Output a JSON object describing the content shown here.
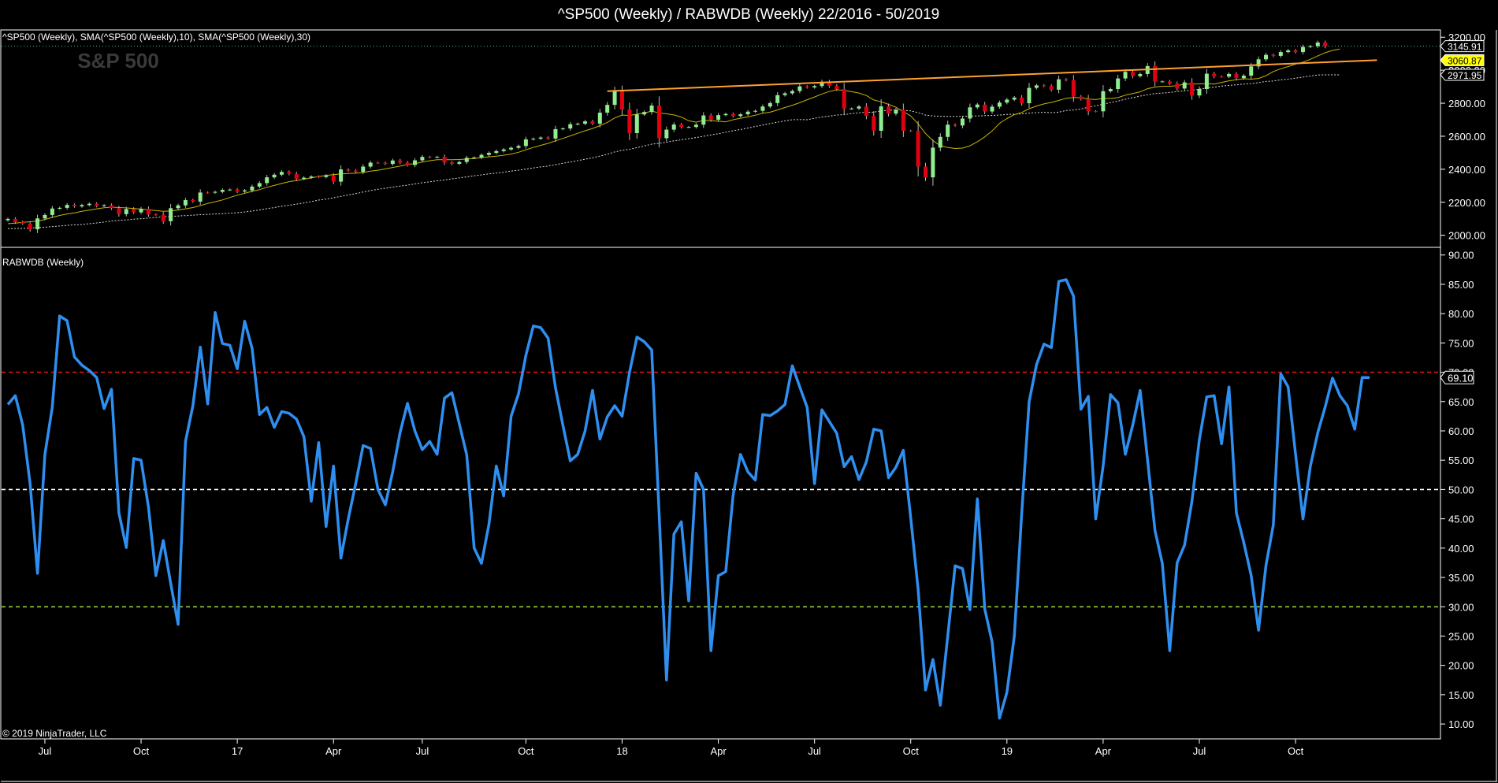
{
  "title": "^SP500 (Weekly) / RABWDB (Weekly)  22/2016 - 50/2019",
  "copyright": "© 2019 NinjaTrader, LLC",
  "colors": {
    "background": "#000000",
    "candle_up": "#90ee90",
    "candle_down": "#e0000f",
    "sma10": "#c8b400",
    "sma30": "#d8d8d8",
    "trendline": "#ffa030",
    "rabwdb_line": "#2f8ff0",
    "level_70": "#e01010",
    "level_50": "#ffffff",
    "level_30": "#9acd32",
    "grid": "#ffffff"
  },
  "chart_data": [
    {
      "id": "price_panel",
      "type": "candlestick",
      "panel_label": "^SP500 (Weekly),  SMA(^SP500 (Weekly),10),  SMA(^SP500 (Weekly),30)",
      "watermark": "S&P 500",
      "y_ticks": [
        "2000.00",
        "2200.00",
        "2400.00",
        "2600.00",
        "2800.00",
        "3000.00",
        "3200.00"
      ],
      "y_tick_values": [
        2000,
        2200,
        2400,
        2600,
        2800,
        3000,
        3200
      ],
      "ylim": [
        1965,
        3225
      ],
      "last_values": [
        {
          "label": "3145.91",
          "value": 3145.91,
          "style": "white"
        },
        {
          "label": "3060.87",
          "value": 3060.87,
          "style": "yellow"
        },
        {
          "label": "2971.95",
          "value": 2971.95,
          "style": "white"
        }
      ],
      "closes": [
        2099,
        2080,
        2071,
        2036,
        2102,
        2123,
        2162,
        2166,
        2184,
        2175,
        2183,
        2191,
        2178,
        2182,
        2164,
        2128,
        2159,
        2139,
        2160,
        2126,
        2125,
        2085,
        2164,
        2181,
        2213,
        2204,
        2259,
        2258,
        2263,
        2275,
        2277,
        2265,
        2272,
        2295,
        2316,
        2351,
        2367,
        2384,
        2372,
        2342,
        2349,
        2356,
        2353,
        2362,
        2325,
        2399,
        2392,
        2384,
        2416,
        2440,
        2439,
        2432,
        2453,
        2440,
        2426,
        2454,
        2475,
        2473,
        2475,
        2441,
        2433,
        2444,
        2469,
        2471,
        2487,
        2499,
        2510,
        2520,
        2530,
        2541,
        2581,
        2585,
        2592,
        2586,
        2643,
        2647,
        2673,
        2676,
        2690,
        2676,
        2743,
        2790,
        2873,
        2762,
        2619,
        2732,
        2747,
        2786,
        2588,
        2640,
        2671,
        2656,
        2656,
        2670,
        2726,
        2700,
        2728,
        2735,
        2722,
        2733,
        2749,
        2754,
        2780,
        2801,
        2849,
        2860,
        2874,
        2902,
        2896,
        2904,
        2930,
        2905,
        2886,
        2767,
        2768,
        2780,
        2723,
        2633,
        2781,
        2737,
        2760,
        2633,
        2632,
        2416,
        2351,
        2531,
        2596,
        2670,
        2665,
        2707,
        2775,
        2792,
        2750,
        2779,
        2804,
        2822,
        2834,
        2800,
        2893,
        2908,
        2904,
        2882,
        2945,
        2940,
        2840,
        2826,
        2752,
        2751,
        2873,
        2886,
        2950,
        2990,
        2964,
        2977,
        3025,
        2932,
        2932,
        2918,
        2889,
        2926,
        2847,
        2886,
        2979,
        2962,
        2961,
        2977,
        2952,
        2967,
        3023,
        3066,
        3093,
        3087,
        3110,
        3120,
        3110,
        3141,
        3146,
        3168,
        3145
      ],
      "sma10": [
        2070,
        2074,
        2078,
        2082,
        2086,
        2096,
        2108,
        2120,
        2129,
        2136,
        2145,
        2152,
        2160,
        2167,
        2170,
        2168,
        2166,
        2162,
        2159,
        2154,
        2150,
        2145,
        2147,
        2153,
        2160,
        2168,
        2180,
        2193,
        2203,
        2214,
        2229,
        2243,
        2254,
        2266,
        2276,
        2291,
        2302,
        2314,
        2325,
        2332,
        2339,
        2348,
        2356,
        2363,
        2367,
        2372,
        2374,
        2376,
        2380,
        2389,
        2394,
        2402,
        2411,
        2419,
        2429,
        2434,
        2443,
        2452,
        2458,
        2458,
        2458,
        2459,
        2462,
        2465,
        2471,
        2475,
        2479,
        2485,
        2492,
        2503,
        2518,
        2532,
        2545,
        2557,
        2572,
        2587,
        2602,
        2618,
        2633,
        2647,
        2664,
        2684,
        2711,
        2728,
        2726,
        2734,
        2741,
        2752,
        2742,
        2736,
        2729,
        2716,
        2694,
        2685,
        2696,
        2694,
        2692,
        2687,
        2700,
        2709,
        2717,
        2727,
        2739,
        2746,
        2759,
        2774,
        2788,
        2803,
        2821,
        2838,
        2856,
        2871,
        2882,
        2878,
        2870,
        2862,
        2847,
        2820,
        2809,
        2793,
        2776,
        2749,
        2723,
        2675,
        2617,
        2573,
        2543,
        2532,
        2526,
        2528,
        2542,
        2567,
        2596,
        2632,
        2678,
        2707,
        2731,
        2744,
        2767,
        2783,
        2796,
        2805,
        2817,
        2830,
        2834,
        2834,
        2826,
        2822,
        2829,
        2829,
        2834,
        2849,
        2859,
        2869,
        2888,
        2898,
        2903,
        2903,
        2906,
        2916,
        2916,
        2917,
        2919,
        2916,
        2926,
        2936,
        2942,
        2948,
        2946,
        2950,
        2967,
        2992,
        3009,
        3022,
        3037,
        3049,
        3066,
        3087,
        3106,
        3120,
        3128
      ],
      "sma30": [
        2040,
        2041,
        2042,
        2044,
        2046,
        2049,
        2053,
        2056,
        2060,
        2063,
        2065,
        2070,
        2075,
        2080,
        2086,
        2090,
        2093,
        2097,
        2100,
        2104,
        2108,
        2111,
        2114,
        2117,
        2119,
        2122,
        2125,
        2127,
        2129,
        2131,
        2134,
        2137,
        2141,
        2147,
        2153,
        2161,
        2168,
        2176,
        2182,
        2189,
        2196,
        2204,
        2213,
        2219,
        2227,
        2236,
        2244,
        2253,
        2262,
        2271,
        2279,
        2285,
        2292,
        2298,
        2304,
        2311,
        2318,
        2324,
        2330,
        2335,
        2342,
        2348,
        2354,
        2360,
        2366,
        2372,
        2377,
        2382,
        2389,
        2394,
        2401,
        2408,
        2414,
        2420,
        2428,
        2436,
        2444,
        2452,
        2461,
        2469,
        2480,
        2491,
        2505,
        2515,
        2521,
        2531,
        2541,
        2552,
        2557,
        2564,
        2572,
        2579,
        2585,
        2592,
        2600,
        2608,
        2615,
        2624,
        2633,
        2641,
        2650,
        2659,
        2668,
        2677,
        2685,
        2693,
        2700,
        2701,
        2700,
        2709,
        2716,
        2722,
        2728,
        2731,
        2737,
        2742,
        2745,
        2746,
        2754,
        2757,
        2760,
        2757,
        2754,
        2743,
        2728,
        2723,
        2721,
        2720,
        2720,
        2721,
        2722,
        2723,
        2725,
        2726,
        2728,
        2732,
        2734,
        2736,
        2740,
        2743,
        2745,
        2743,
        2746,
        2756,
        2759,
        2765,
        2776,
        2784,
        2794,
        2804,
        2813,
        2824,
        2834,
        2843,
        2851,
        2859,
        2862,
        2865,
        2871,
        2875,
        2879,
        2885,
        2892,
        2898,
        2904,
        2908,
        2912,
        2916,
        2919,
        2925,
        2932,
        2935,
        2942,
        2946,
        2952,
        2958,
        2965,
        2971,
        2972,
        2972,
        2972
      ],
      "trendline": {
        "start_index": 81,
        "start_value": 2873,
        "end_index": 185,
        "end_value": 3060.87
      }
    },
    {
      "id": "rabwdb_panel",
      "type": "line",
      "panel_label": "RABWDB (Weekly)",
      "y_ticks": [
        "10.00",
        "15.00",
        "20.00",
        "25.00",
        "30.00",
        "35.00",
        "40.00",
        "45.00",
        "50.00",
        "55.00",
        "60.00",
        "65.00",
        "70.00",
        "75.00",
        "80.00",
        "85.00",
        "90.00"
      ],
      "y_tick_values": [
        10,
        15,
        20,
        25,
        30,
        35,
        40,
        45,
        50,
        55,
        60,
        65,
        70,
        75,
        80,
        85,
        90
      ],
      "ylim": [
        8,
        90.5
      ],
      "levels": [
        70,
        50,
        30
      ],
      "last_value_label": "69.10",
      "last_value": 69.1,
      "values": [
        64.5,
        66.0,
        61.0,
        51.0,
        35.7,
        56.0,
        64.0,
        79.6,
        78.8,
        72.6,
        71.2,
        70.3,
        69.1,
        63.8,
        67.1,
        46.0,
        40.1,
        55.3,
        55.0,
        47.0,
        35.3,
        41.3,
        34.0,
        27.0,
        58.2,
        64.3,
        74.3,
        64.6,
        80.2,
        74.9,
        74.6,
        70.6,
        78.7,
        74.1,
        62.8,
        64.0,
        60.6,
        63.3,
        63.0,
        62.0,
        59.0,
        48.0,
        58.0,
        43.7,
        54.0,
        38.3,
        45.0,
        51.0,
        57.5,
        57.0,
        50.0,
        47.4,
        53.0,
        59.7,
        64.7,
        60.0,
        56.8,
        58.2,
        56.0,
        65.6,
        66.5,
        61.2,
        55.9,
        40.0,
        37.4,
        44.0,
        54.0,
        48.9,
        62.5,
        66.3,
        72.9,
        77.9,
        77.6,
        75.8,
        67.3,
        61.0,
        54.9,
        56.0,
        60.0,
        66.9,
        58.6,
        62.4,
        64.3,
        62.5,
        70.0,
        76.0,
        75.2,
        73.8,
        46.0,
        17.5,
        42.4,
        44.5,
        31.0,
        52.8,
        50.0,
        22.5,
        35.3,
        36.0,
        49.0,
        56.0,
        53.0,
        51.6,
        62.8,
        62.6,
        63.4,
        64.5,
        71.1,
        67.5,
        64.0,
        51.0,
        63.6,
        61.6,
        59.6,
        53.9,
        55.6,
        51.7,
        54.7,
        60.3,
        60.0,
        52.0,
        53.8,
        56.7,
        45.2,
        33.0,
        15.8,
        21.0,
        13.2,
        25.0,
        37.0,
        36.5,
        29.5,
        48.4,
        29.6,
        24.0,
        11.0,
        15.4,
        25.0,
        46.0,
        65.0,
        71.3,
        74.8,
        74.2,
        85.5,
        85.8,
        83.0,
        63.7,
        65.9,
        45.0,
        54.0,
        66.2,
        64.8,
        56.0,
        61.0,
        66.9,
        55.0,
        43.0,
        37.4,
        22.5,
        37.5,
        40.5,
        48.0,
        58.5,
        65.8,
        66.0,
        57.8,
        67.5,
        46.0,
        41.0,
        35.4,
        26.0,
        37.0,
        44.0,
        69.7,
        67.5,
        56.0,
        45.0,
        54.0,
        59.7,
        64.1,
        69.0,
        66.0,
        64.3,
        60.3,
        69.1,
        69.1
      ]
    }
  ],
  "x_axis": {
    "labels": [
      {
        "text": "Jul",
        "index": 5
      },
      {
        "text": "Oct",
        "index": 18
      },
      {
        "text": "17",
        "index": 31
      },
      {
        "text": "Apr",
        "index": 44
      },
      {
        "text": "Jul",
        "index": 56
      },
      {
        "text": "Oct",
        "index": 70
      },
      {
        "text": "18",
        "index": 83
      },
      {
        "text": "Apr",
        "index": 96
      },
      {
        "text": "Jul",
        "index": 109
      },
      {
        "text": "Oct",
        "index": 122
      },
      {
        "text": "19",
        "index": 135
      },
      {
        "text": "Apr",
        "index": 148
      },
      {
        "text": "Jul",
        "index": 161
      },
      {
        "text": "Oct",
        "index": 174
      }
    ]
  }
}
